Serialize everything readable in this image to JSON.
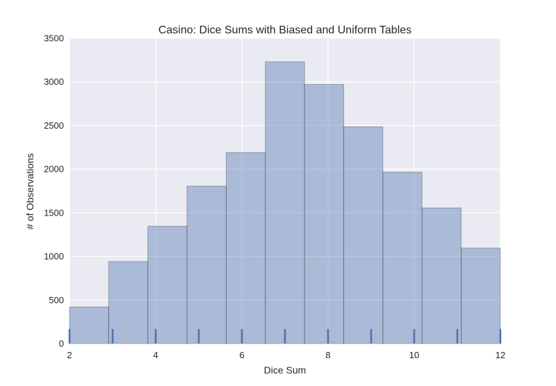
{
  "chart_data": {
    "type": "bar",
    "title": "Casino: Dice Sums with Biased and Uniform Tables",
    "xlabel": "Dice Sum",
    "ylabel": "# of Observations",
    "xlim": [
      2,
      12
    ],
    "ylim": [
      0,
      3500
    ],
    "xticks": [
      2,
      4,
      6,
      8,
      10,
      12
    ],
    "xtick_labels": [
      "2",
      "4",
      "6",
      "8",
      "10",
      "12"
    ],
    "yticks": [
      0,
      500,
      1000,
      1500,
      2000,
      2500,
      3000,
      3500
    ],
    "ytick_labels": [
      "0",
      "500",
      "1000",
      "1500",
      "2000",
      "2500",
      "3000",
      "3500"
    ],
    "bins": [
      {
        "x0": 2.0,
        "x1": 2.909,
        "value": 420
      },
      {
        "x0": 2.909,
        "x1": 3.818,
        "value": 940
      },
      {
        "x0": 3.818,
        "x1": 4.727,
        "value": 1345
      },
      {
        "x0": 4.727,
        "x1": 5.636,
        "value": 1805
      },
      {
        "x0": 5.636,
        "x1": 6.545,
        "value": 2190
      },
      {
        "x0": 6.545,
        "x1": 7.455,
        "value": 3230
      },
      {
        "x0": 7.455,
        "x1": 8.364,
        "value": 2970
      },
      {
        "x0": 8.364,
        "x1": 9.273,
        "value": 2485
      },
      {
        "x0": 9.273,
        "x1": 10.182,
        "value": 1965
      },
      {
        "x0": 10.182,
        "x1": 11.091,
        "value": 1555
      },
      {
        "x0": 11.091,
        "x1": 12.0,
        "value": 1095
      }
    ],
    "rug": [
      2,
      3,
      4,
      5,
      6,
      7,
      8,
      9,
      10,
      11,
      12
    ],
    "grid": true,
    "colors": {
      "background": "#eaeaf2",
      "bar_fill": "#4c72b0",
      "bar_opacity": 0.4,
      "rug": "#4c72b0",
      "grid": "#ffffff"
    }
  }
}
